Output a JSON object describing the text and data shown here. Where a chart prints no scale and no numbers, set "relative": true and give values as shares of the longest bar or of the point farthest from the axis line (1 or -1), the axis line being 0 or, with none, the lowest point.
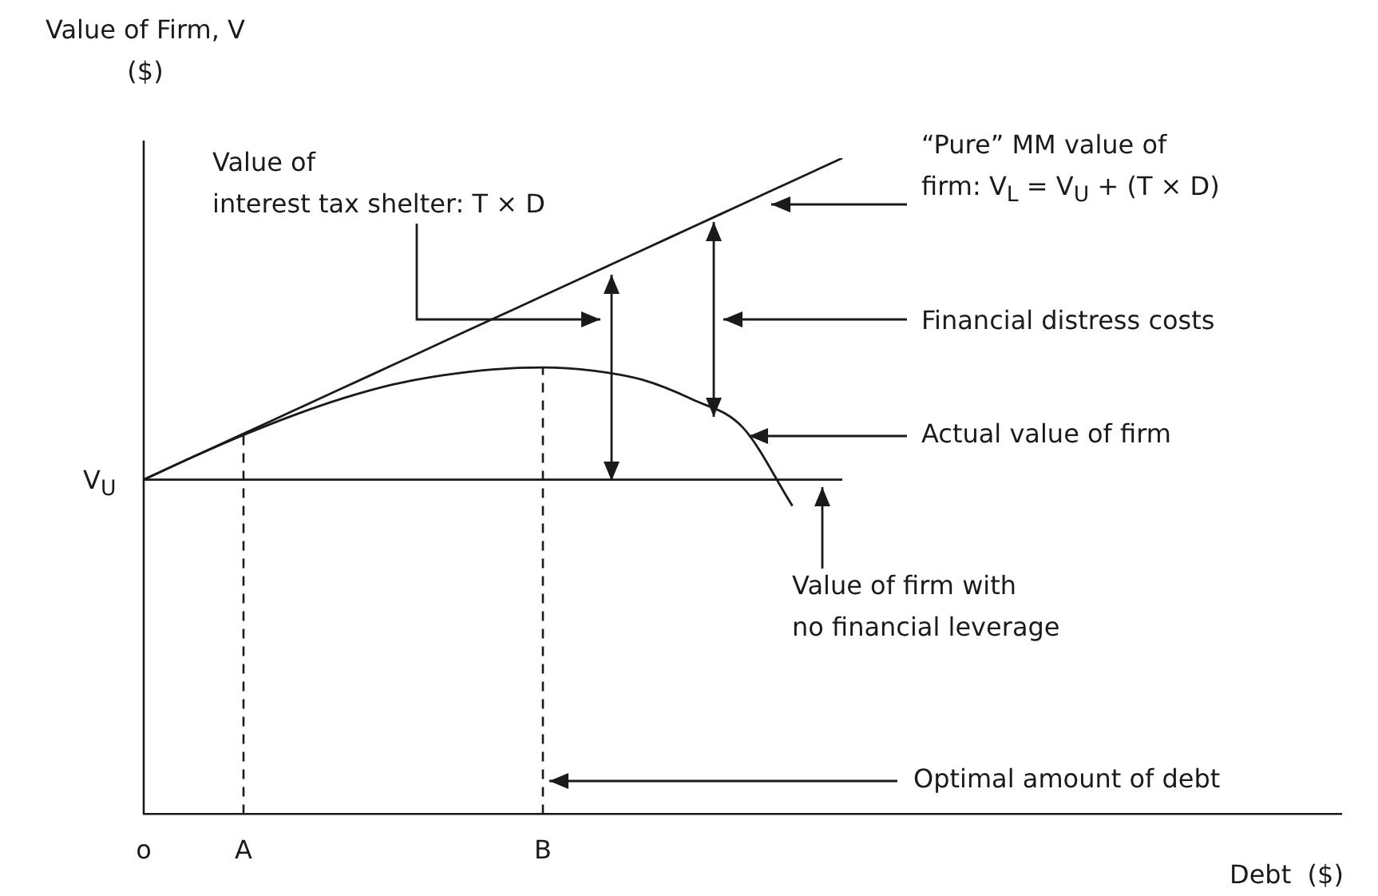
{
  "chart_data": {
    "type": "line",
    "relative": true,
    "ylabel": "Value of Firm, V\n($)",
    "xlabel": "Debt  ($)",
    "categories": [
      "o",
      null,
      "A",
      null,
      null,
      null,
      null,
      null,
      "B",
      null,
      null,
      null,
      null,
      null,
      null,
      null,
      null,
      null,
      null,
      null,
      null,
      null,
      null,
      null,
      null
    ],
    "series": [
      {
        "color": "#1a1a1a",
        "values": [
          0.51,
          0.545,
          0.58,
          0.615,
          0.65,
          0.685,
          0.72,
          0.755,
          0.79,
          0.825,
          0.86,
          0.895,
          0.93,
          0.965,
          1.0,
          null,
          null,
          null,
          null,
          null,
          null,
          null,
          null,
          null,
          null
        ]
      },
      {
        "color": "#1a1a1a",
        "values": [
          0.51,
          0.545,
          0.578,
          0.608,
          0.634,
          0.655,
          0.669,
          0.678,
          0.681,
          0.676,
          0.662,
          0.632,
          0.59,
          0.47,
          null,
          null,
          null,
          null,
          null,
          null,
          null,
          null,
          null,
          null,
          null
        ]
      },
      {
        "color": "#1a1a1a",
        "values": [
          0.51,
          0.51,
          0.51,
          0.51,
          0.51,
          0.51,
          0.51,
          0.51,
          0.51,
          0.51,
          0.51,
          0.51,
          0.51,
          0.51,
          0.51,
          null,
          null,
          null,
          null,
          null,
          null,
          null,
          null,
          null,
          null
        ]
      }
    ],
    "ref_lines": [
      {
        "axis": "x",
        "value": "A",
        "line_style": "dashed"
      },
      {
        "axis": "x",
        "value": "B",
        "line_style": "dashed"
      }
    ],
    "annotations": [
      "Value of\ninterest tax shelter: T × D",
      "“Pure” MM value of\nfirm: V$_{L}$ = V$_{U}$ + (T × D)",
      "Financial distress costs",
      "Actual value of firm",
      "Value of firm with\nno financial leverage",
      "Optimal amount of debt",
      "V$_{U}$"
    ],
    "legend": false,
    "grid": false,
    "marker": "none",
    "line_style": "solid"
  }
}
